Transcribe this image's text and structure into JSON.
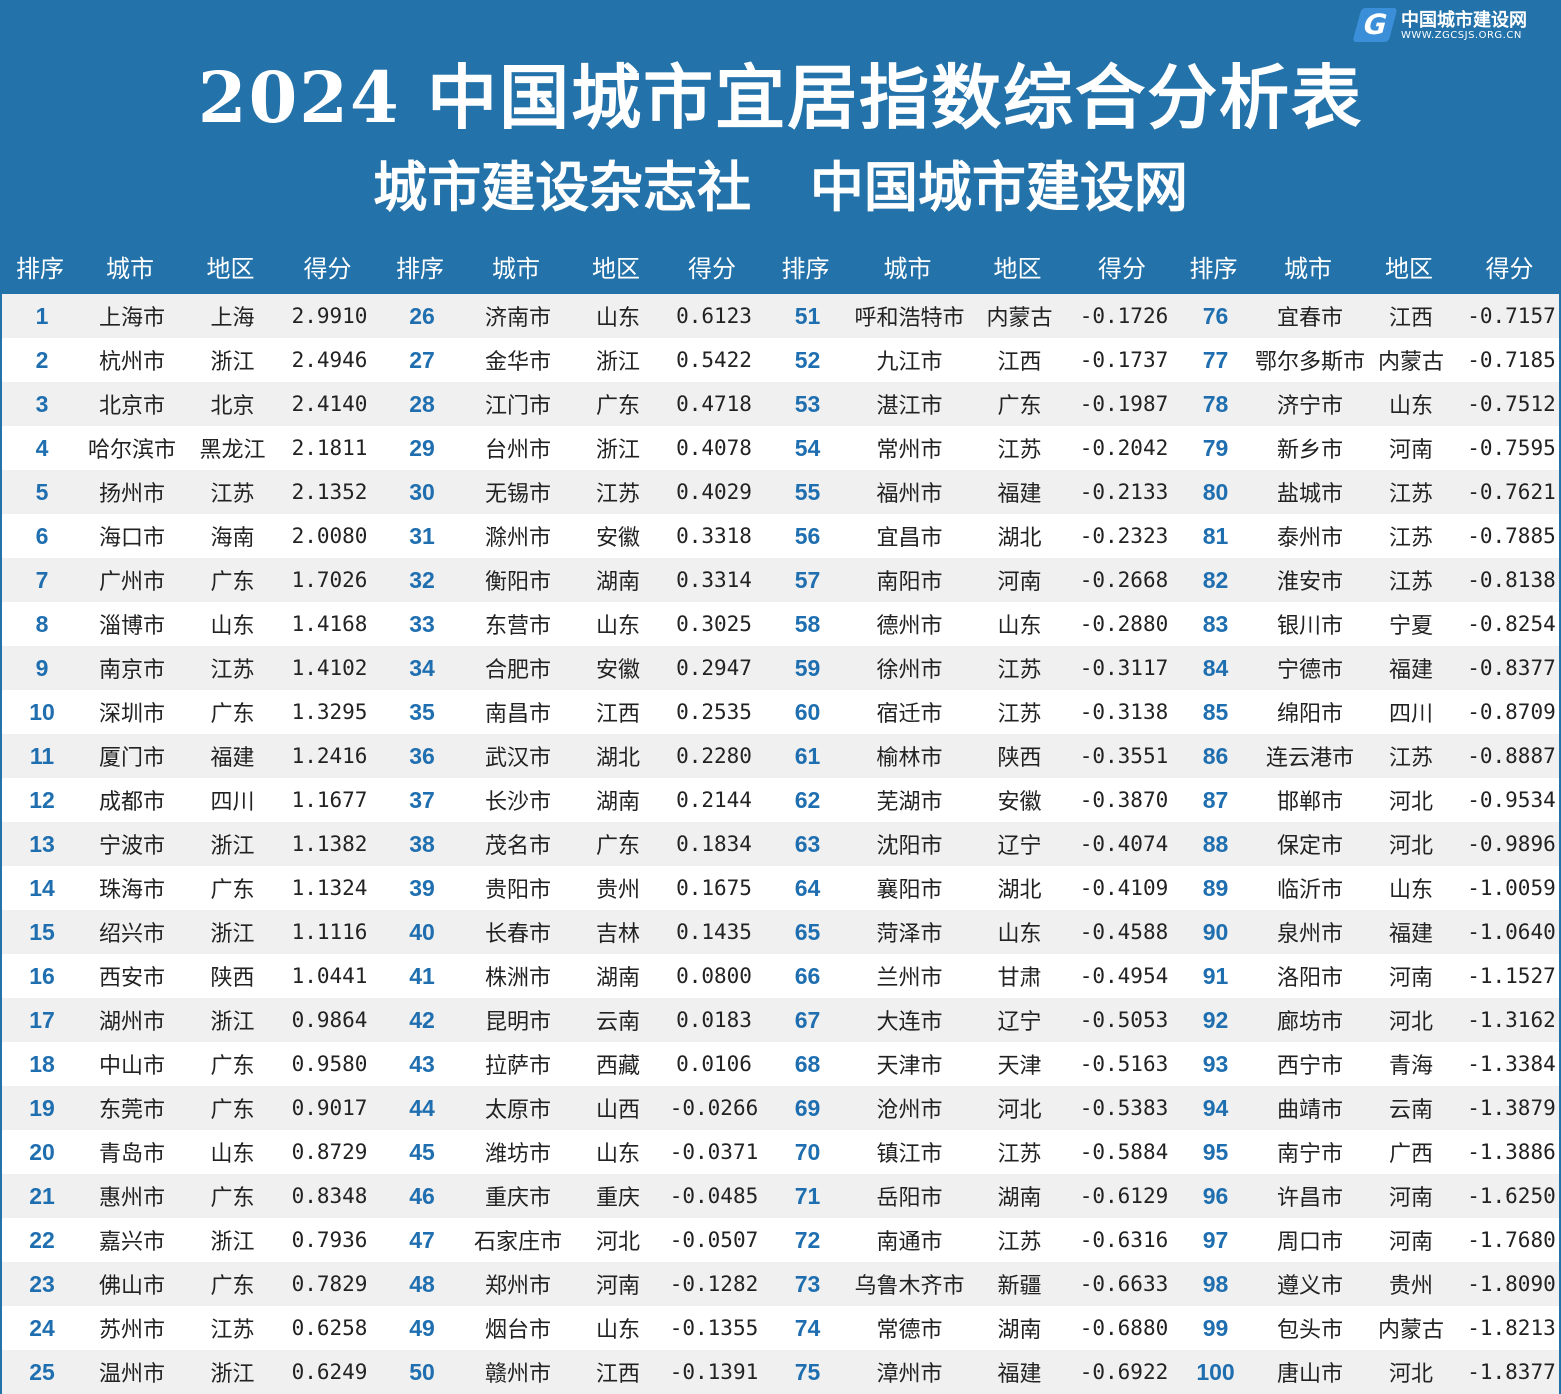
{
  "title": "2024 中国城市宜居指数综合分析表",
  "subtitle": "城市建设杂志社 中国城市建设网",
  "headers": [
    "排序",
    "城市",
    "地区",
    "得分"
  ],
  "colors": {
    "background": "#2372aa",
    "rank": "#1f6fb0",
    "row_alt": "#f0f0f0"
  },
  "watermark": {
    "name": "中国城市建设网",
    "url": "WWW.ZGCSJS.ORG.CN",
    "icon": "g-logo-icon"
  },
  "rows": [
    [
      "1",
      "上海市",
      "上海",
      "2.9910"
    ],
    [
      "2",
      "杭州市",
      "浙江",
      "2.4946"
    ],
    [
      "3",
      "北京市",
      "北京",
      "2.4140"
    ],
    [
      "4",
      "哈尔滨市",
      "黑龙江",
      "2.1811"
    ],
    [
      "5",
      "扬州市",
      "江苏",
      "2.1352"
    ],
    [
      "6",
      "海口市",
      "海南",
      "2.0080"
    ],
    [
      "7",
      "广州市",
      "广东",
      "1.7026"
    ],
    [
      "8",
      "淄博市",
      "山东",
      "1.4168"
    ],
    [
      "9",
      "南京市",
      "江苏",
      "1.4102"
    ],
    [
      "10",
      "深圳市",
      "广东",
      "1.3295"
    ],
    [
      "11",
      "厦门市",
      "福建",
      "1.2416"
    ],
    [
      "12",
      "成都市",
      "四川",
      "1.1677"
    ],
    [
      "13",
      "宁波市",
      "浙江",
      "1.1382"
    ],
    [
      "14",
      "珠海市",
      "广东",
      "1.1324"
    ],
    [
      "15",
      "绍兴市",
      "浙江",
      "1.1116"
    ],
    [
      "16",
      "西安市",
      "陕西",
      "1.0441"
    ],
    [
      "17",
      "湖州市",
      "浙江",
      "0.9864"
    ],
    [
      "18",
      "中山市",
      "广东",
      "0.9580"
    ],
    [
      "19",
      "东莞市",
      "广东",
      "0.9017"
    ],
    [
      "20",
      "青岛市",
      "山东",
      "0.8729"
    ],
    [
      "21",
      "惠州市",
      "广东",
      "0.8348"
    ],
    [
      "22",
      "嘉兴市",
      "浙江",
      "0.7936"
    ],
    [
      "23",
      "佛山市",
      "广东",
      "0.7829"
    ],
    [
      "24",
      "苏州市",
      "江苏",
      "0.6258"
    ],
    [
      "25",
      "温州市",
      "浙江",
      "0.6249"
    ],
    [
      "26",
      "济南市",
      "山东",
      "0.6123"
    ],
    [
      "27",
      "金华市",
      "浙江",
      "0.5422"
    ],
    [
      "28",
      "江门市",
      "广东",
      "0.4718"
    ],
    [
      "29",
      "台州市",
      "浙江",
      "0.4078"
    ],
    [
      "30",
      "无锡市",
      "江苏",
      "0.4029"
    ],
    [
      "31",
      "滁州市",
      "安徽",
      "0.3318"
    ],
    [
      "32",
      "衡阳市",
      "湖南",
      "0.3314"
    ],
    [
      "33",
      "东营市",
      "山东",
      "0.3025"
    ],
    [
      "34",
      "合肥市",
      "安徽",
      "0.2947"
    ],
    [
      "35",
      "南昌市",
      "江西",
      "0.2535"
    ],
    [
      "36",
      "武汉市",
      "湖北",
      "0.2280"
    ],
    [
      "37",
      "长沙市",
      "湖南",
      "0.2144"
    ],
    [
      "38",
      "茂名市",
      "广东",
      "0.1834"
    ],
    [
      "39",
      "贵阳市",
      "贵州",
      "0.1675"
    ],
    [
      "40",
      "长春市",
      "吉林",
      "0.1435"
    ],
    [
      "41",
      "株洲市",
      "湖南",
      "0.0800"
    ],
    [
      "42",
      "昆明市",
      "云南",
      "0.0183"
    ],
    [
      "43",
      "拉萨市",
      "西藏",
      "0.0106"
    ],
    [
      "44",
      "太原市",
      "山西",
      "-0.0266"
    ],
    [
      "45",
      "潍坊市",
      "山东",
      "-0.0371"
    ],
    [
      "46",
      "重庆市",
      "重庆",
      "-0.0485"
    ],
    [
      "47",
      "石家庄市",
      "河北",
      "-0.0507"
    ],
    [
      "48",
      "郑州市",
      "河南",
      "-0.1282"
    ],
    [
      "49",
      "烟台市",
      "山东",
      "-0.1355"
    ],
    [
      "50",
      "赣州市",
      "江西",
      "-0.1391"
    ],
    [
      "51",
      "呼和浩特市",
      "内蒙古",
      "-0.1726"
    ],
    [
      "52",
      "九江市",
      "江西",
      "-0.1737"
    ],
    [
      "53",
      "湛江市",
      "广东",
      "-0.1987"
    ],
    [
      "54",
      "常州市",
      "江苏",
      "-0.2042"
    ],
    [
      "55",
      "福州市",
      "福建",
      "-0.2133"
    ],
    [
      "56",
      "宜昌市",
      "湖北",
      "-0.2323"
    ],
    [
      "57",
      "南阳市",
      "河南",
      "-0.2668"
    ],
    [
      "58",
      "德州市",
      "山东",
      "-0.2880"
    ],
    [
      "59",
      "徐州市",
      "江苏",
      "-0.3117"
    ],
    [
      "60",
      "宿迁市",
      "江苏",
      "-0.3138"
    ],
    [
      "61",
      "榆林市",
      "陕西",
      "-0.3551"
    ],
    [
      "62",
      "芜湖市",
      "安徽",
      "-0.3870"
    ],
    [
      "63",
      "沈阳市",
      "辽宁",
      "-0.4074"
    ],
    [
      "64",
      "襄阳市",
      "湖北",
      "-0.4109"
    ],
    [
      "65",
      "菏泽市",
      "山东",
      "-0.4588"
    ],
    [
      "66",
      "兰州市",
      "甘肃",
      "-0.4954"
    ],
    [
      "67",
      "大连市",
      "辽宁",
      "-0.5053"
    ],
    [
      "68",
      "天津市",
      "天津",
      "-0.5163"
    ],
    [
      "69",
      "沧州市",
      "河北",
      "-0.5383"
    ],
    [
      "70",
      "镇江市",
      "江苏",
      "-0.5884"
    ],
    [
      "71",
      "岳阳市",
      "湖南",
      "-0.6129"
    ],
    [
      "72",
      "南通市",
      "江苏",
      "-0.6316"
    ],
    [
      "73",
      "乌鲁木齐市",
      "新疆",
      "-0.6633"
    ],
    [
      "74",
      "常德市",
      "湖南",
      "-0.6880"
    ],
    [
      "75",
      "漳州市",
      "福建",
      "-0.6922"
    ],
    [
      "76",
      "宜春市",
      "江西",
      "-0.7157"
    ],
    [
      "77",
      "鄂尔多斯市",
      "内蒙古",
      "-0.7185"
    ],
    [
      "78",
      "济宁市",
      "山东",
      "-0.7512"
    ],
    [
      "79",
      "新乡市",
      "河南",
      "-0.7595"
    ],
    [
      "80",
      "盐城市",
      "江苏",
      "-0.7621"
    ],
    [
      "81",
      "泰州市",
      "江苏",
      "-0.7885"
    ],
    [
      "82",
      "淮安市",
      "江苏",
      "-0.8138"
    ],
    [
      "83",
      "银川市",
      "宁夏",
      "-0.8254"
    ],
    [
      "84",
      "宁德市",
      "福建",
      "-0.8377"
    ],
    [
      "85",
      "绵阳市",
      "四川",
      "-0.8709"
    ],
    [
      "86",
      "连云港市",
      "江苏",
      "-0.8887"
    ],
    [
      "87",
      "邯郸市",
      "河北",
      "-0.9534"
    ],
    [
      "88",
      "保定市",
      "河北",
      "-0.9896"
    ],
    [
      "89",
      "临沂市",
      "山东",
      "-1.0059"
    ],
    [
      "90",
      "泉州市",
      "福建",
      "-1.0640"
    ],
    [
      "91",
      "洛阳市",
      "河南",
      "-1.1527"
    ],
    [
      "92",
      "廊坊市",
      "河北",
      "-1.3162"
    ],
    [
      "93",
      "西宁市",
      "青海",
      "-1.3384"
    ],
    [
      "94",
      "曲靖市",
      "云南",
      "-1.3879"
    ],
    [
      "95",
      "南宁市",
      "广西",
      "-1.3886"
    ],
    [
      "96",
      "许昌市",
      "河南",
      "-1.6250"
    ],
    [
      "97",
      "周口市",
      "河南",
      "-1.7680"
    ],
    [
      "98",
      "遵义市",
      "贵州",
      "-1.8090"
    ],
    [
      "99",
      "包头市",
      "内蒙古",
      "-1.8213"
    ],
    [
      "100",
      "唐山市",
      "河北",
      "-1.8377"
    ]
  ]
}
